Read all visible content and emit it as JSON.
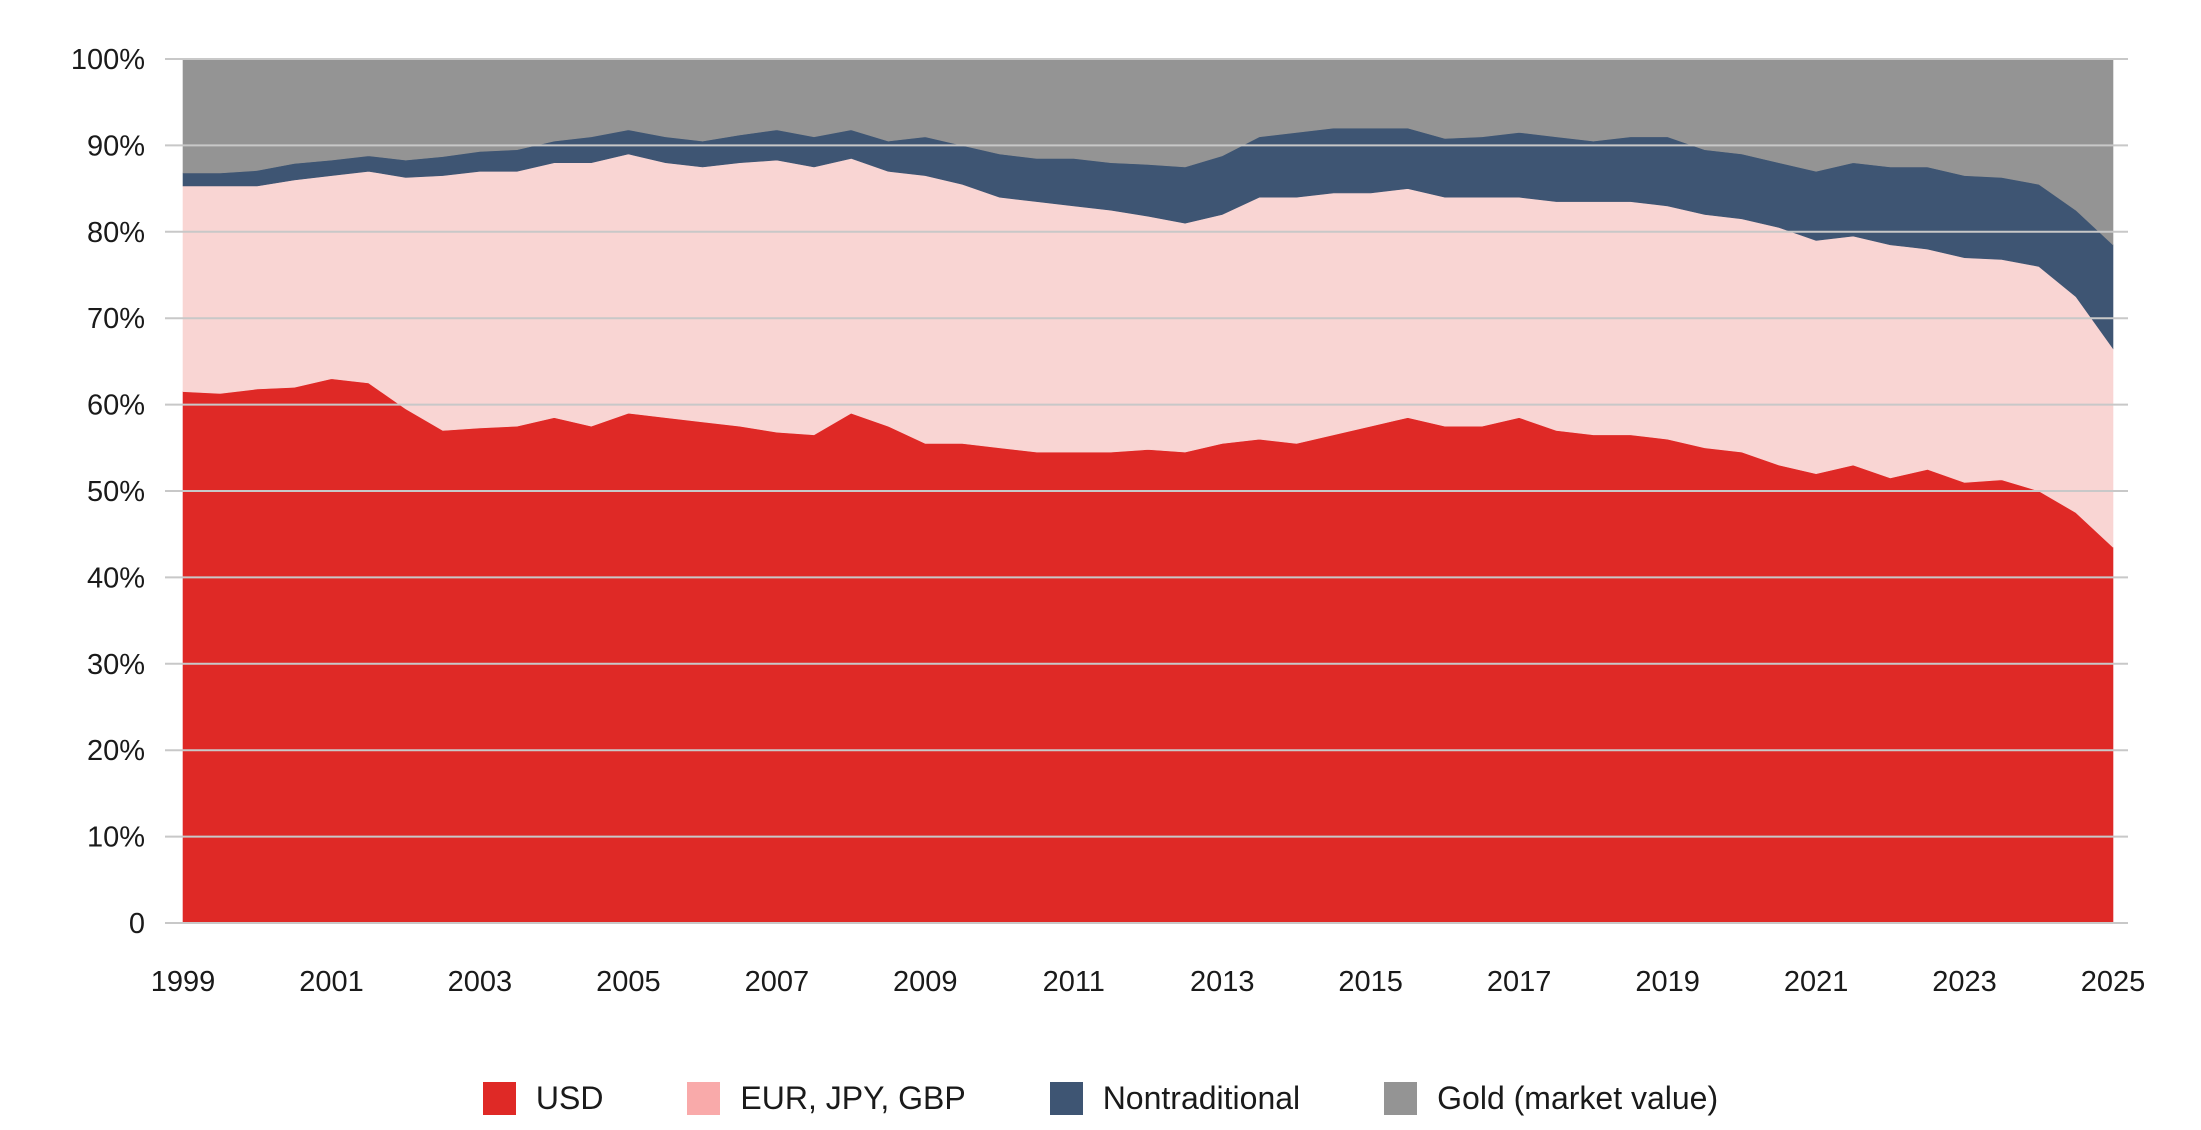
{
  "chart_data": {
    "type": "area",
    "stacked": true,
    "title": "",
    "xlabel": "",
    "ylabel": "",
    "ylim": [
      0,
      100
    ],
    "y_ticks": [
      0,
      10,
      20,
      30,
      40,
      50,
      60,
      70,
      80,
      90,
      100
    ],
    "y_tick_labels": [
      "0",
      "10%",
      "20%",
      "30%",
      "40%",
      "50%",
      "60%",
      "70%",
      "80%",
      "90%",
      "100%"
    ],
    "x_range": [
      1999.0,
      2025.0
    ],
    "x_ticks": [
      1999,
      2001,
      2003,
      2005,
      2007,
      2009,
      2011,
      2013,
      2015,
      2017,
      2019,
      2021,
      2023,
      2025
    ],
    "x_tick_labels": [
      "1999",
      "2001",
      "2003",
      "2005",
      "2007",
      "2009",
      "2011",
      "2013",
      "2015",
      "2017",
      "2019",
      "2021",
      "2023",
      "2025"
    ],
    "grid": "horizontal",
    "legend_position": "bottom",
    "x": [
      1999.0,
      1999.5,
      2000.0,
      2000.5,
      2001.0,
      2001.5,
      2002.0,
      2002.5,
      2003.0,
      2003.5,
      2004.0,
      2004.5,
      2005.0,
      2005.5,
      2006.0,
      2006.5,
      2007.0,
      2007.5,
      2008.0,
      2008.5,
      2009.0,
      2009.5,
      2010.0,
      2010.5,
      2011.0,
      2011.5,
      2012.0,
      2012.5,
      2013.0,
      2013.5,
      2014.0,
      2014.5,
      2015.0,
      2015.5,
      2016.0,
      2016.5,
      2017.0,
      2017.5,
      2018.0,
      2018.5,
      2019.0,
      2019.5,
      2020.0,
      2020.5,
      2021.0,
      2021.5,
      2022.0,
      2022.5,
      2023.0,
      2023.5,
      2024.0,
      2024.5,
      2025.0
    ],
    "series": [
      {
        "name": "USD",
        "color": "#df2926",
        "values": [
          61.5,
          61.3,
          61.8,
          62.0,
          63.0,
          62.5,
          59.5,
          57.0,
          57.3,
          57.5,
          58.5,
          57.5,
          59.0,
          58.5,
          58.0,
          57.5,
          56.8,
          56.5,
          59.0,
          57.5,
          55.5,
          55.5,
          55.0,
          54.5,
          54.5,
          54.5,
          54.8,
          54.5,
          55.5,
          56.0,
          55.5,
          56.5,
          57.5,
          58.5,
          57.5,
          57.5,
          58.5,
          57.0,
          56.5,
          56.5,
          56.0,
          55.0,
          54.5,
          53.0,
          52.0,
          53.0,
          51.5,
          52.5,
          51.0,
          51.3,
          50.0,
          47.5,
          43.5
        ]
      },
      {
        "name": "EUR, JPY, GBP",
        "color": "#f9d5d3",
        "values": [
          23.8,
          24.0,
          23.5,
          24.0,
          23.5,
          24.5,
          26.8,
          29.5,
          29.7,
          29.5,
          29.5,
          30.5,
          30.0,
          29.5,
          29.5,
          30.5,
          31.5,
          31.0,
          29.5,
          29.5,
          31.0,
          30.0,
          29.0,
          29.0,
          28.5,
          28.0,
          27.0,
          26.5,
          26.5,
          28.0,
          28.5,
          28.0,
          27.0,
          26.5,
          26.5,
          26.5,
          25.5,
          26.5,
          27.0,
          27.0,
          27.0,
          27.0,
          27.0,
          27.5,
          27.0,
          26.5,
          27.0,
          25.5,
          26.0,
          25.5,
          26.0,
          25.0,
          23.0
        ]
      },
      {
        "name": "Nontraditional",
        "color": "#3e5573",
        "values": [
          1.5,
          1.5,
          1.8,
          1.9,
          1.8,
          1.8,
          2.0,
          2.2,
          2.3,
          2.5,
          2.5,
          3.0,
          2.8,
          3.0,
          3.0,
          3.2,
          3.5,
          3.5,
          3.3,
          3.5,
          4.5,
          4.5,
          5.0,
          5.0,
          5.5,
          5.5,
          6.0,
          6.5,
          6.8,
          7.0,
          7.5,
          7.5,
          7.5,
          7.0,
          6.8,
          7.0,
          7.5,
          7.5,
          7.0,
          7.5,
          8.0,
          7.5,
          7.5,
          7.5,
          8.0,
          8.5,
          9.0,
          9.5,
          9.5,
          9.5,
          9.5,
          10.0,
          12.0
        ]
      },
      {
        "name": "Gold (market value)",
        "color": "#949494",
        "values": [
          13.2,
          13.2,
          12.9,
          12.1,
          11.7,
          11.2,
          11.7,
          11.3,
          10.7,
          10.5,
          9.5,
          9.0,
          8.2,
          9.0,
          9.5,
          8.8,
          8.2,
          9.0,
          8.2,
          9.5,
          9.0,
          10.0,
          11.0,
          11.5,
          11.5,
          12.0,
          12.2,
          12.5,
          11.2,
          9.0,
          8.5,
          8.0,
          8.0,
          8.0,
          9.2,
          9.0,
          8.5,
          9.0,
          9.5,
          9.0,
          9.0,
          10.5,
          11.0,
          12.0,
          13.0,
          12.0,
          12.5,
          12.5,
          13.5,
          13.7,
          14.5,
          17.5,
          21.5
        ]
      }
    ]
  },
  "legend": {
    "items": [
      {
        "label": "USD",
        "color": "#df2926"
      },
      {
        "label": "EUR, JPY, GBP",
        "color": "#f9aaaa"
      },
      {
        "label": "Nontraditional",
        "color": "#3e5573"
      },
      {
        "label": "Gold (market value)",
        "color": "#949494"
      }
    ]
  }
}
